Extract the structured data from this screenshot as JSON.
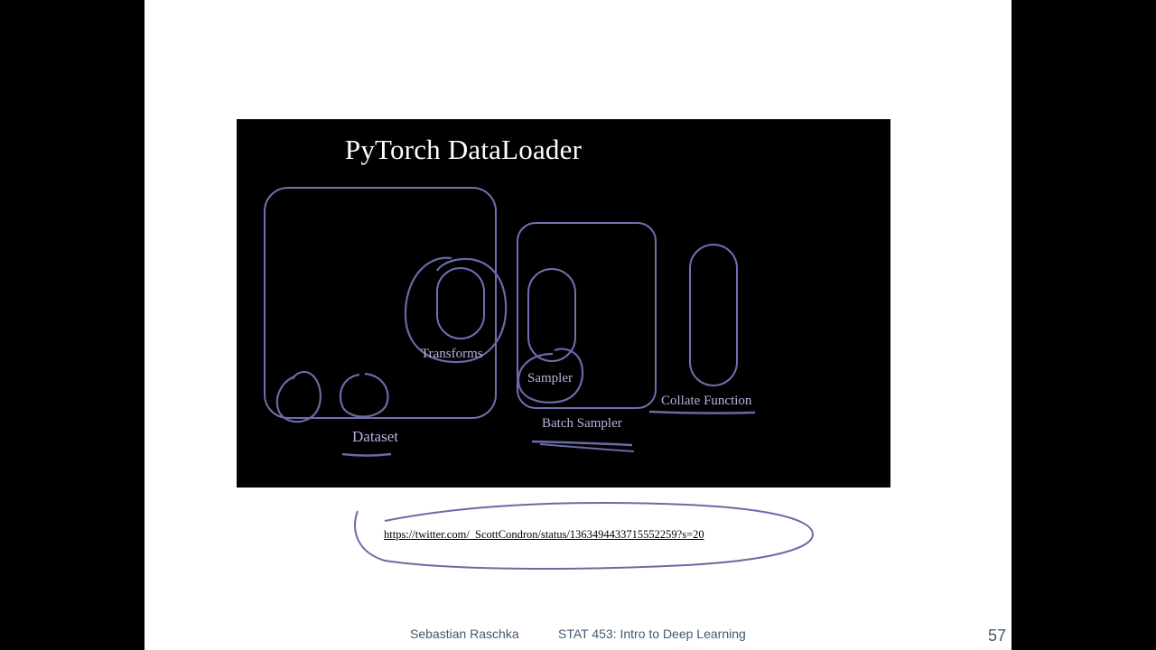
{
  "figure": {
    "title": "PyTorch DataLoader",
    "labels": {
      "transforms": "Transforms",
      "sampler": "Sampler",
      "dataset": "Dataset",
      "batch_sampler": "Batch Sampler",
      "collate_function": "Collate Function"
    }
  },
  "link": {
    "url_text": "https://twitter.com/_ScottCondron/status/1363494433715552259?s=20"
  },
  "footer": {
    "author": "Sebastian Raschka",
    "course": "STAT 453: Intro to Deep Learning",
    "page_number": "57"
  },
  "colors": {
    "diagram_stroke": "#7070b0",
    "annotation_ink": "#6a6aa8",
    "label_color": "#b4b4dc",
    "footer_color": "#3f5a73"
  }
}
